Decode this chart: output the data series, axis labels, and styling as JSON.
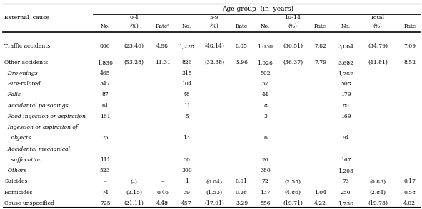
{
  "title": "Age group  (in  years)",
  "col_groups": [
    "0-4",
    "5-9",
    "10-14",
    "Total"
  ],
  "sub_cols": [
    "No.",
    "(%)",
    "Rate"
  ],
  "external_cause_label": "External  cause",
  "rows": [
    {
      "label": "Traffic accidents",
      "italic": false,
      "blank_before": true,
      "values": [
        "806",
        "(23.46)",
        "4.98",
        "1,228",
        "(48.14)",
        "8.85",
        "1,030",
        "(36.51)",
        "7.82",
        "3,064",
        "(34.79)",
        "7.09"
      ]
    },
    {
      "label": "Other accidents",
      "italic": false,
      "blank_before": true,
      "values": [
        "1,830",
        "(53.28)",
        "11.31",
        "826",
        "(32.38)",
        "5.96",
        "1,026",
        "(36.37)",
        "7.79",
        "3,682",
        "(41.81)",
        "8.52"
      ]
    },
    {
      "label": "  Drownings",
      "italic": true,
      "blank_before": false,
      "values": [
        "465",
        "",
        "",
        "315",
        "",
        "",
        "502",
        "",
        "",
        "1,282",
        "",
        ""
      ]
    },
    {
      "label": "  Fire-related",
      "italic": true,
      "blank_before": false,
      "values": [
        "347",
        "",
        "",
        "104",
        "",
        "",
        "57",
        "",
        "",
        "508",
        "",
        ""
      ]
    },
    {
      "label": "  Falls",
      "italic": true,
      "blank_before": false,
      "values": [
        "87",
        "",
        "",
        "48",
        "",
        "",
        "44",
        "",
        "",
        "179",
        "",
        ""
      ]
    },
    {
      "label": "  Accidental poisonings",
      "italic": true,
      "blank_before": false,
      "values": [
        "61",
        "",
        "",
        "11",
        "",
        "",
        "8",
        "",
        "",
        "80",
        "",
        ""
      ]
    },
    {
      "label": "  Food ingestion or aspiration",
      "italic": true,
      "blank_before": false,
      "values": [
        "161",
        "",
        "",
        "5",
        "",
        "",
        "3",
        "",
        "",
        "169",
        "",
        ""
      ]
    },
    {
      "label": "  Ingestion or aspiration of",
      "italic": true,
      "blank_before": false,
      "values": [
        "",
        "",
        "",
        "",
        "",
        "",
        "",
        "",
        "",
        "",
        "",
        ""
      ]
    },
    {
      "label": "    objects",
      "italic": true,
      "blank_before": false,
      "values": [
        "75",
        "",
        "",
        "13",
        "",
        "",
        "6",
        "",
        "",
        "94",
        "",
        ""
      ]
    },
    {
      "label": "  Accidental mechanical",
      "italic": true,
      "blank_before": false,
      "values": [
        "",
        "",
        "",
        "",
        "",
        "",
        "",
        "",
        "",
        "",
        "",
        ""
      ]
    },
    {
      "label": "    suffocation",
      "italic": true,
      "blank_before": false,
      "values": [
        "111",
        "",
        "",
        "30",
        "",
        "",
        "26",
        "",
        "",
        "167",
        "",
        ""
      ]
    },
    {
      "label": "  Others",
      "italic": true,
      "blank_before": false,
      "values": [
        "523",
        "",
        "",
        "300",
        "",
        "",
        "380",
        "",
        "",
        "1,203",
        "",
        ""
      ]
    },
    {
      "label": "Suicides",
      "italic": false,
      "blank_before": false,
      "values": [
        "–",
        "(–)",
        "–",
        "1",
        "(0.04)",
        "0.01",
        "72",
        "(2.55)",
        "",
        "73",
        "(0.83)",
        "0.17"
      ]
    },
    {
      "label": "Homicides",
      "italic": false,
      "blank_before": false,
      "values": [
        "74",
        "(2.15)",
        "0.46",
        "39",
        "(1.53)",
        "0.28",
        "137",
        "(4.86)",
        "1.04",
        "250",
        "(2.84)",
        "0.58"
      ]
    },
    {
      "label": "Cause unspecified",
      "italic": false,
      "blank_before": false,
      "values": [
        "725",
        "(21.11)",
        "4.48",
        "457",
        "(17.91)",
        "3.29",
        "556",
        "(19.71)",
        "4.22",
        "1,738",
        "(19.73)",
        "4.02"
      ]
    }
  ]
}
